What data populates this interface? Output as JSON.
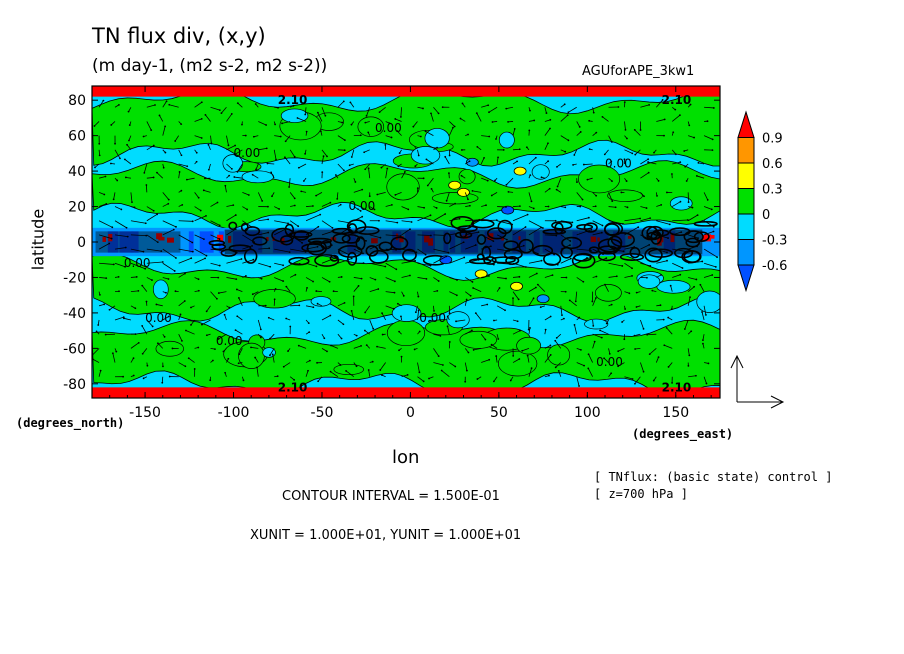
{
  "chart_data": {
    "type": "heatmap",
    "title": "TN flux div, (x,y)",
    "subtitle": "(m day-1, (m2 s-2, m2 s-2))",
    "experiment": "AGUforAPE_3kw1",
    "xlabel": "lon",
    "ylabel": "latitude",
    "x_unit": "(degrees_east)",
    "y_unit": "(degrees_north)",
    "xlim": [
      -180,
      175
    ],
    "ylim": [
      -88,
      88
    ],
    "x_ticks": [
      -150,
      -100,
      -50,
      0,
      50,
      100,
      150
    ],
    "y_ticks": [
      -80,
      -60,
      -40,
      -20,
      0,
      20,
      40,
      60,
      80
    ],
    "colorbar": {
      "levels": [
        -0.6,
        -0.3,
        0,
        0.3,
        0.6,
        0.9
      ],
      "labels": [
        "-0.6",
        "-0.3",
        "0",
        "0.3",
        "0.6",
        "0.9"
      ],
      "colors": [
        "#0050ff",
        "#0096ff",
        "#00dcff",
        "#00e000",
        "#ffff00",
        "#ff9600",
        "#ff0000"
      ]
    },
    "contour_label": "0.00",
    "polar_label": "2.10",
    "contour_interval": "CONTOUR INTERVAL = 1.500E-01",
    "vector_units": "XUNIT = 1.000E+01, YUNIT = 1.000E+01",
    "notes": [
      "[ TNflux: (basic state) control ]",
      "[ z=700 hPa ]"
    ]
  }
}
